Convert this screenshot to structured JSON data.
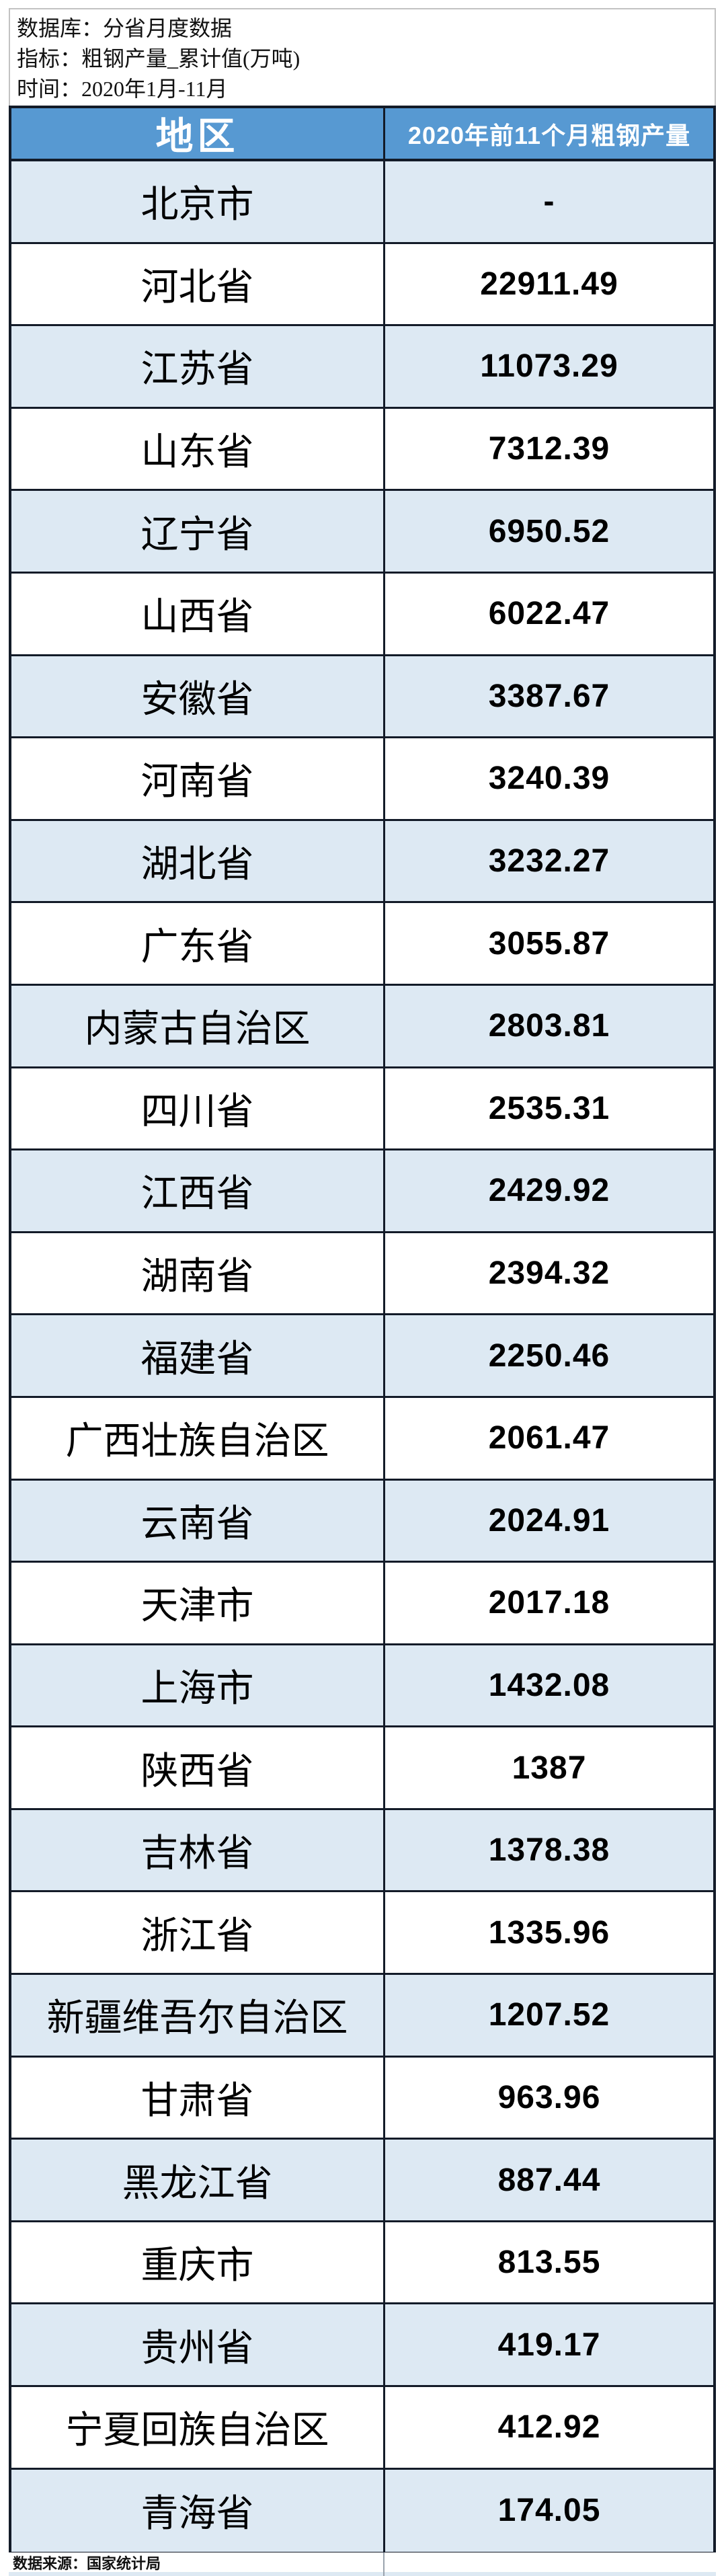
{
  "meta": {
    "database_label": "数据库：分省月度数据",
    "indicator_label": "指标：粗钢产量_累计值(万吨)",
    "time_label": "时间：2020年1月-11月"
  },
  "table": {
    "columns": {
      "region": "地区",
      "value": "2020年前11个月粗钢产量"
    },
    "rows": [
      {
        "region": "北京市",
        "value": "-"
      },
      {
        "region": "河北省",
        "value": "22911.49"
      },
      {
        "region": "江苏省",
        "value": "11073.29"
      },
      {
        "region": "山东省",
        "value": "7312.39"
      },
      {
        "region": "辽宁省",
        "value": "6950.52"
      },
      {
        "region": "山西省",
        "value": "6022.47"
      },
      {
        "region": "安徽省",
        "value": "3387.67"
      },
      {
        "region": "河南省",
        "value": "3240.39"
      },
      {
        "region": "湖北省",
        "value": "3232.27"
      },
      {
        "region": "广东省",
        "value": "3055.87"
      },
      {
        "region": "内蒙古自治区",
        "value": "2803.81"
      },
      {
        "region": "四川省",
        "value": "2535.31"
      },
      {
        "region": "江西省",
        "value": "2429.92"
      },
      {
        "region": "湖南省",
        "value": "2394.32"
      },
      {
        "region": "福建省",
        "value": "2250.46"
      },
      {
        "region": "广西壮族自治区",
        "value": "2061.47"
      },
      {
        "region": "云南省",
        "value": "2024.91"
      },
      {
        "region": "天津市",
        "value": "2017.18"
      },
      {
        "region": "上海市",
        "value": "1432.08"
      },
      {
        "region": "陕西省",
        "value": "1387"
      },
      {
        "region": "吉林省",
        "value": "1378.38"
      },
      {
        "region": "浙江省",
        "value": "1335.96"
      },
      {
        "region": "新疆维吾尔自治区",
        "value": "1207.52"
      },
      {
        "region": "甘肃省",
        "value": "963.96"
      },
      {
        "region": "黑龙江省",
        "value": "887.44"
      },
      {
        "region": "重庆市",
        "value": "813.55"
      },
      {
        "region": "贵州省",
        "value": "419.17"
      },
      {
        "region": "宁夏回族自治区",
        "value": "412.92"
      },
      {
        "region": "青海省",
        "value": "174.05"
      }
    ]
  },
  "footer": {
    "source_label": "数据来源：国家统计局"
  },
  "colors": {
    "header_bg": "#5799d2",
    "row_alt_bg": "#dde9f3",
    "border": "#131b28",
    "header_text": "#ffffff",
    "info_border": "#c2c2c2"
  },
  "chart_data": {
    "type": "table",
    "title": "2020年前11个月粗钢产量",
    "unit": "万吨",
    "source": "国家统计局",
    "time_range": "2020年1月-11月",
    "categories": [
      "北京市",
      "河北省",
      "江苏省",
      "山东省",
      "辽宁省",
      "山西省",
      "安徽省",
      "河南省",
      "湖北省",
      "广东省",
      "内蒙古自治区",
      "四川省",
      "江西省",
      "湖南省",
      "福建省",
      "广西壮族自治区",
      "云南省",
      "天津市",
      "上海市",
      "陕西省",
      "吉林省",
      "浙江省",
      "新疆维吾尔自治区",
      "甘肃省",
      "黑龙江省",
      "重庆市",
      "贵州省",
      "宁夏回族自治区",
      "青海省"
    ],
    "values": [
      null,
      22911.49,
      11073.29,
      7312.39,
      6950.52,
      6022.47,
      3387.67,
      3240.39,
      3232.27,
      3055.87,
      2803.81,
      2535.31,
      2429.92,
      2394.32,
      2250.46,
      2061.47,
      2024.91,
      2017.18,
      1432.08,
      1387,
      1378.38,
      1335.96,
      1207.52,
      963.96,
      887.44,
      813.55,
      419.17,
      412.92,
      174.05
    ]
  }
}
